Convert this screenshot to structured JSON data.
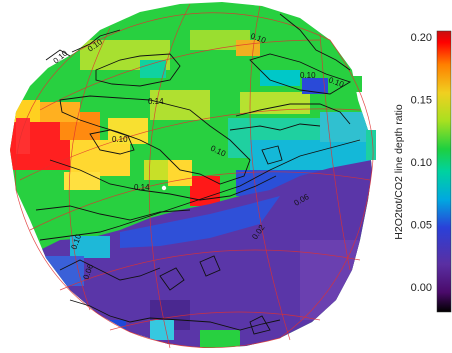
{
  "chart_data": {
    "type": "heatmap",
    "title": "",
    "colorbar": {
      "label": "H2O2tot/CO2 line depth ratio",
      "range": [
        -0.02,
        0.205
      ],
      "ticks": [
        "0.20",
        "0.15",
        "0.10",
        "0.05",
        "0.00"
      ],
      "tick_values": [
        0.2,
        0.15,
        0.1,
        0.05,
        0.0
      ],
      "colormap": "rainbow",
      "colors": [
        "#000000",
        "#4a0a6a",
        "#5a2fa2",
        "#2a40d8",
        "#00a8e0",
        "#00d2a0",
        "#1ed040",
        "#a8e020",
        "#f0d020",
        "#ff8000",
        "#ff0000",
        "#c81010"
      ]
    },
    "contour_labels": [
      {
        "text": "0.14",
        "value": 0.14
      },
      {
        "text": "0.10",
        "value": 0.1
      },
      {
        "text": "0.10",
        "value": 0.1
      },
      {
        "text": "0.14",
        "value": 0.14
      },
      {
        "text": "0.10",
        "value": 0.1
      },
      {
        "text": "0.10",
        "value": 0.1
      },
      {
        "text": "0.06",
        "value": 0.06
      },
      {
        "text": "0.02",
        "value": 0.02
      },
      {
        "text": "0.10",
        "value": 0.1
      },
      {
        "text": "0.06",
        "value": 0.06
      },
      {
        "text": "0.10",
        "value": 0.1
      },
      {
        "text": "0.10",
        "value": 0.1
      },
      {
        "text": "0.10",
        "value": 0.1
      }
    ],
    "regions": [
      {
        "name": "northern high-ratio band",
        "level": 0.13
      },
      {
        "name": "western bright spot",
        "level": 0.19
      },
      {
        "name": "central bright spot",
        "level": 0.2
      },
      {
        "name": "southern low-ratio region",
        "level": 0.005
      }
    ]
  }
}
